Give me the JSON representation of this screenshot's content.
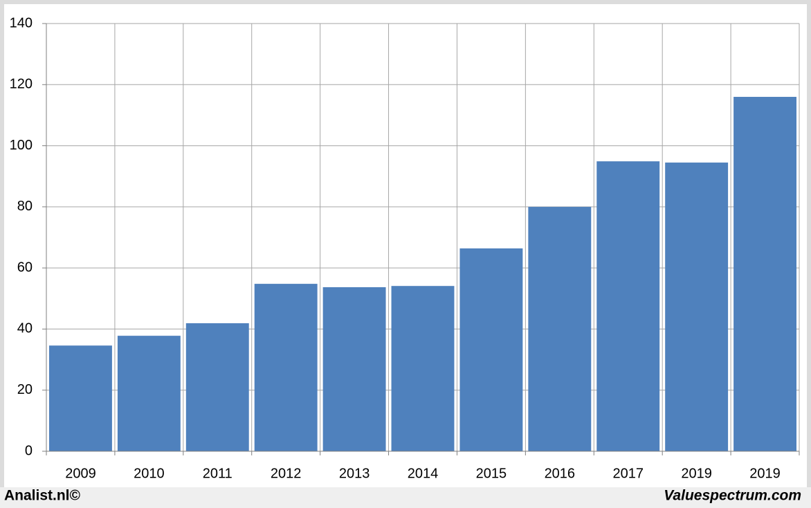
{
  "chart_data": {
    "type": "bar",
    "categories": [
      "2009",
      "2010",
      "2011",
      "2012",
      "2013",
      "2014",
      "2015",
      "2016",
      "2017",
      "2019",
      "2019"
    ],
    "values": [
      34.6,
      37.8,
      41.9,
      54.8,
      53.7,
      54.1,
      66.4,
      80.0,
      94.9,
      94.5,
      116.0
    ],
    "color": "#4f81bd",
    "ylim": [
      0,
      140
    ],
    "yticks": [
      0,
      20,
      40,
      60,
      80,
      100,
      120,
      140
    ],
    "grid": true,
    "annotations": [
      "Analist.nl©",
      "Valuespectrum.com"
    ]
  }
}
